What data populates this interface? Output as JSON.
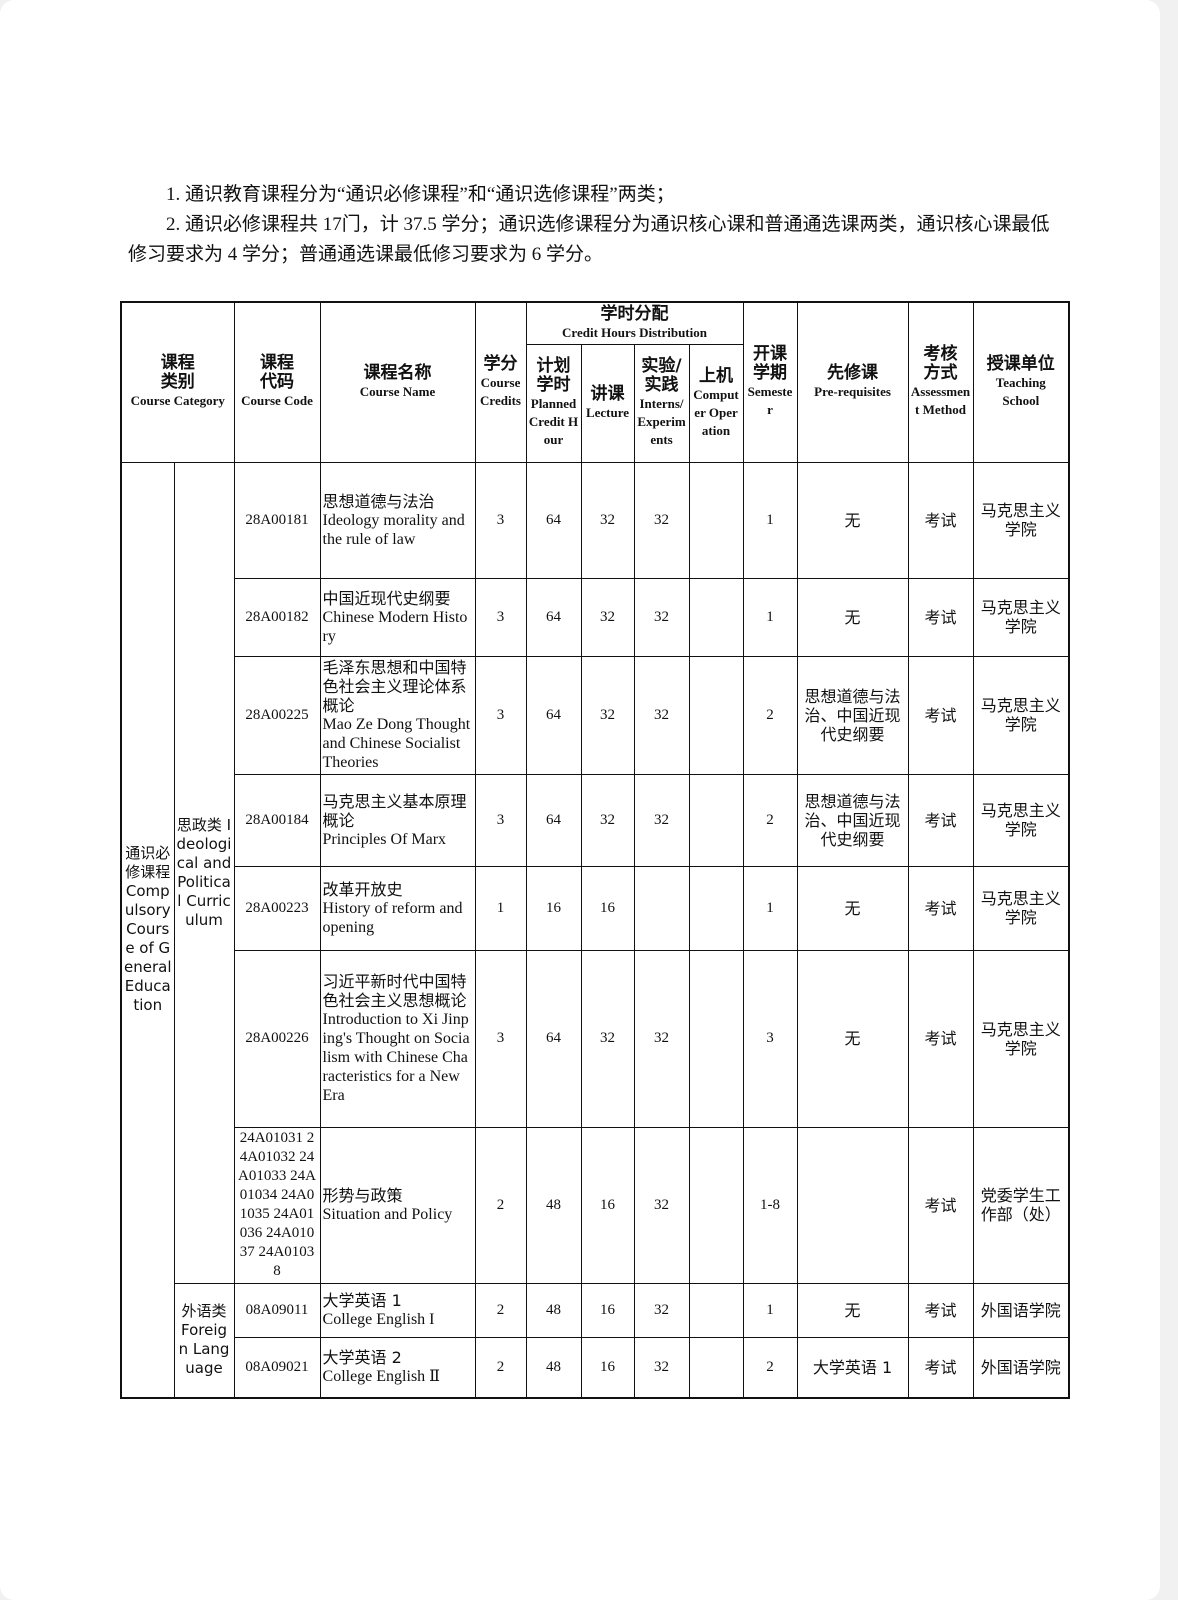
{
  "notes": [
    "1. 通识教育课程分为“通识必修课程”和“通识选修课程”两类；",
    "2. 通识必修课程共 17门，计 37.5 学分；通识选修课程分为通识核心课和普通通选课两类，通识核心课最低修习要求为 4 学分；普通通选课最低修习要求为 6 学分。"
  ],
  "headers": {
    "category": {
      "zh": "课程类别",
      "en": "Course Category"
    },
    "code": {
      "zh": "课程代码",
      "en": "Course Code"
    },
    "name": {
      "zh": "课程名称",
      "en": "Course Name"
    },
    "credits": {
      "zh": "学分",
      "en": "Course Credits"
    },
    "distribution": {
      "zh": "学时分配",
      "en": "Credit Hours Distribution"
    },
    "planned": {
      "zh": "计划学时",
      "en": "Planned Credit Hour"
    },
    "lecture": {
      "zh": "讲课",
      "en": "Lecture"
    },
    "interns": {
      "zh": "实验/实践",
      "en": "Interns/Experiments"
    },
    "computer": {
      "zh": "上机",
      "en": "Computer Operation"
    },
    "semester": {
      "zh": "开课学期",
      "en": "Semester"
    },
    "prereq": {
      "zh": "先修课",
      "en": "Pre-requisites"
    },
    "assess": {
      "zh": "考核方式",
      "en": "Assessment Method"
    },
    "school": {
      "zh": "授课单位",
      "en": "Teaching School"
    }
  },
  "category_main": "通识必修课程 Compulsory Cours e of General Education",
  "subcategories": [
    {
      "label": "思政类 Ideological and Political Curriculum",
      "rows": 7
    },
    {
      "label": "外语类 Foreign Language",
      "rows": 2
    }
  ],
  "rows": [
    {
      "code": "28A00181",
      "zh": "思想道德与法治",
      "en": "Ideology morality and the rule of law",
      "credits": "3",
      "planned": "64",
      "lecture": "32",
      "interns": "32",
      "computer": "",
      "semester": "1",
      "prereq": "无",
      "assess": "考试",
      "school": "马克思主义学院"
    },
    {
      "code": "28A00182",
      "zh": "中国近现代史纲要",
      "en": "Chinese Modern History",
      "credits": "3",
      "planned": "64",
      "lecture": "32",
      "interns": "32",
      "computer": "",
      "semester": "1",
      "prereq": "无",
      "assess": "考试",
      "school": "马克思主义学院"
    },
    {
      "code": "28A00225",
      "zh": "毛泽东思想和中国特色社会主义理论体系概论",
      "en": "Mao Ze Dong Thought and Chinese Socialist Theories",
      "credits": "3",
      "planned": "64",
      "lecture": "32",
      "interns": "32",
      "computer": "",
      "semester": "2",
      "prereq": "思想道德与法治、中国近现代史纲要",
      "assess": "考试",
      "school": "马克思主义学院"
    },
    {
      "code": "28A00184",
      "zh": "马克思主义基本原理概论",
      "en": "Principles Of Marx",
      "credits": "3",
      "planned": "64",
      "lecture": "32",
      "interns": "32",
      "computer": "",
      "semester": "2",
      "prereq": "思想道德与法治、中国近现代史纲要",
      "assess": "考试",
      "school": "马克思主义学院"
    },
    {
      "code": "28A00223",
      "zh": "改革开放史",
      "en": "History of reform and opening",
      "credits": "1",
      "planned": "16",
      "lecture": "16",
      "interns": "",
      "computer": "",
      "semester": "1",
      "prereq": "无",
      "assess": "考试",
      "school": "马克思主义学院"
    },
    {
      "code": "28A00226",
      "zh": "习近平新时代中国特色社会主义思想概论",
      "en": "Introduction to Xi Jinping's Thought on Socialism with Chinese Characteristics for a New Era",
      "credits": "3",
      "planned": "64",
      "lecture": "32",
      "interns": "32",
      "computer": "",
      "semester": "3",
      "prereq": "无",
      "assess": "考试",
      "school": "马克思主义学院"
    },
    {
      "code": "24A01031 24A01032 24A01033 24A01034 24A01035 24A01036 24A01037 24A01038",
      "zh": "形势与政策",
      "en": "Situation and Policy",
      "credits": "2",
      "planned": "48",
      "lecture": "16",
      "interns": "32",
      "computer": "",
      "semester": "1-8",
      "prereq": "",
      "assess": "考试",
      "school": "党委学生工作部（处）"
    },
    {
      "code": "08A09011",
      "zh": "大学英语 1",
      "en": "College English I",
      "credits": "2",
      "planned": "48",
      "lecture": "16",
      "interns": "32",
      "computer": "",
      "semester": "1",
      "prereq": "无",
      "assess": "考试",
      "school": "外国语学院"
    },
    {
      "code": "08A09021",
      "zh": "大学英语 2",
      "en": "College English Ⅱ",
      "credits": "2",
      "planned": "48",
      "lecture": "16",
      "interns": "32",
      "computer": "",
      "semester": "2",
      "prereq": "大学英语 1",
      "assess": "考试",
      "school": "外国语学院"
    }
  ]
}
